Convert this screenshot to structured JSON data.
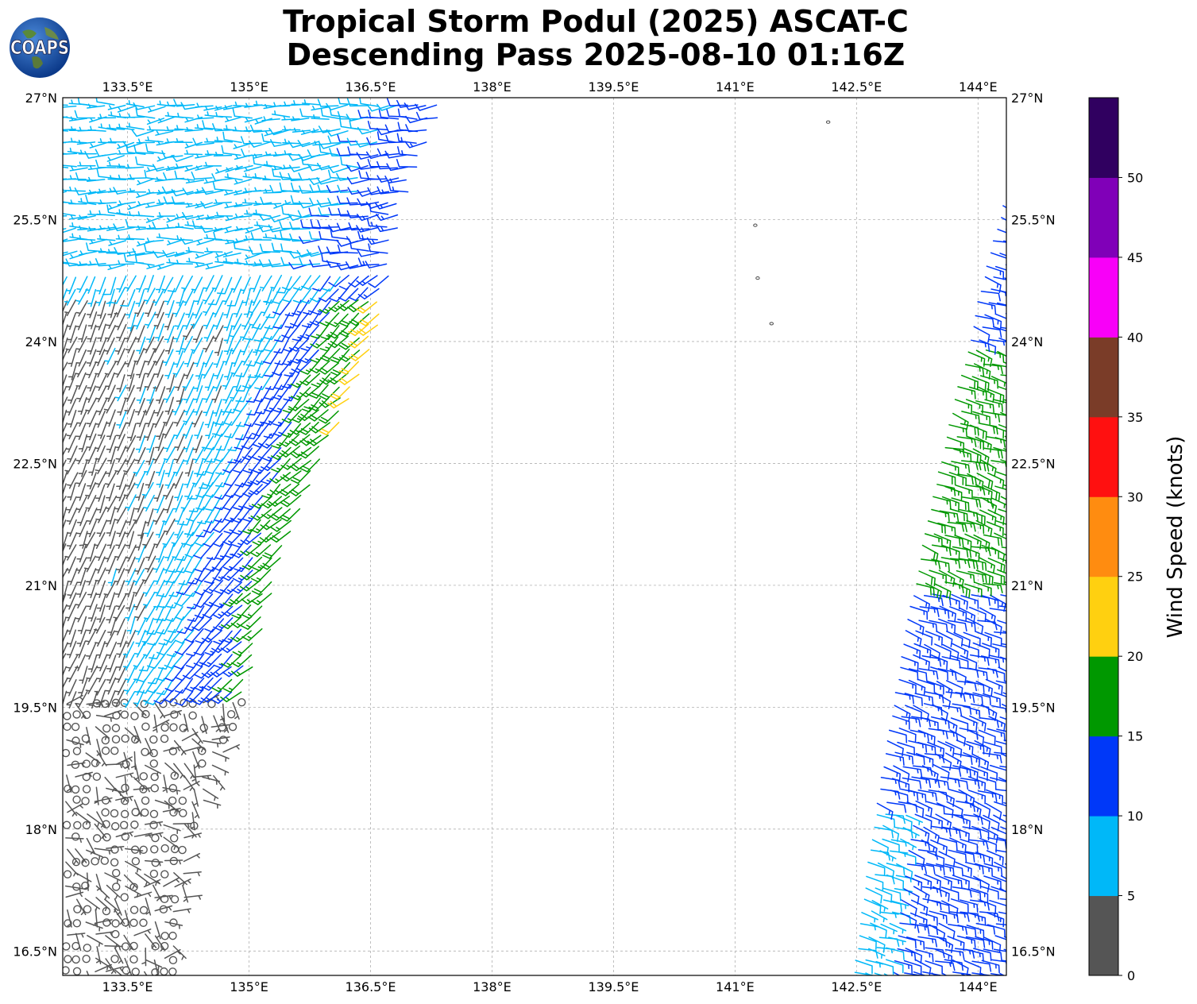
{
  "title": {
    "line1": "Tropical Storm Podul (2025) ASCAT-C",
    "line2": "Descending Pass 2025-08-10 01:16Z"
  },
  "logo": {
    "text": "COAPS",
    "icon": "globe-logo-icon"
  },
  "map": {
    "projection": "plate-carree",
    "lon_range": [
      132.7,
      144.35
    ],
    "lat_range": [
      16.2,
      27.0
    ],
    "gridlines": true,
    "lon_ticks": [
      {
        "value": 133.5,
        "label": "133.5°E"
      },
      {
        "value": 135.0,
        "label": "135°E"
      },
      {
        "value": 136.5,
        "label": "136.5°E"
      },
      {
        "value": 138.0,
        "label": "138°E"
      },
      {
        "value": 139.5,
        "label": "139.5°E"
      },
      {
        "value": 141.0,
        "label": "141°E"
      },
      {
        "value": 142.5,
        "label": "142.5°E"
      },
      {
        "value": 144.0,
        "label": "144°E"
      }
    ],
    "lat_ticks": [
      {
        "value": 27.0,
        "label": "27°N"
      },
      {
        "value": 25.5,
        "label": "25.5°N"
      },
      {
        "value": 24.0,
        "label": "24°N"
      },
      {
        "value": 22.5,
        "label": "22.5°N"
      },
      {
        "value": 21.0,
        "label": "21°N"
      },
      {
        "value": 19.5,
        "label": "19.5°N"
      },
      {
        "value": 18.0,
        "label": "18°N"
      },
      {
        "value": 16.5,
        "label": "16.5°N"
      }
    ],
    "islands": [
      {
        "lon": 141.25,
        "lat": 25.43
      },
      {
        "lon": 141.28,
        "lat": 24.78
      },
      {
        "lon": 141.45,
        "lat": 24.22
      },
      {
        "lon": 142.15,
        "lat": 26.7
      }
    ]
  },
  "colorbar": {
    "label": "Wind Speed (knots)",
    "ticks": [
      "0",
      "5",
      "10",
      "15",
      "20",
      "25",
      "30",
      "35",
      "40",
      "45",
      "50"
    ],
    "bins": [
      {
        "min": 0,
        "max": 5,
        "color": "#555555"
      },
      {
        "min": 5,
        "max": 10,
        "color": "#00b8f8"
      },
      {
        "min": 10,
        "max": 15,
        "color": "#0038f8"
      },
      {
        "min": 15,
        "max": 20,
        "color": "#009800"
      },
      {
        "min": 20,
        "max": 25,
        "color": "#ffd010"
      },
      {
        "min": 25,
        "max": 30,
        "color": "#ff8c10"
      },
      {
        "min": 30,
        "max": 35,
        "color": "#ff1010"
      },
      {
        "min": 35,
        "max": 40,
        "color": "#7a3c28"
      },
      {
        "min": 40,
        "max": 45,
        "color": "#f800f8"
      },
      {
        "min": 45,
        "max": 50,
        "color": "#8000b8"
      },
      {
        "min": 50,
        "max": 55,
        "color": "#300060"
      }
    ]
  },
  "swaths": {
    "west": {
      "lon_min": 132.7,
      "edge": [
        [
          27.0,
          137.45
        ],
        [
          25.6,
          136.9
        ],
        [
          24.0,
          136.55
        ],
        [
          22.5,
          135.9
        ],
        [
          21.0,
          135.3
        ],
        [
          19.5,
          134.9
        ],
        [
          18.0,
          134.3
        ],
        [
          16.2,
          134.1
        ]
      ],
      "regions": [
        {
          "lat_min": 16.2,
          "lat_max": 19.6,
          "kind": "calm"
        },
        {
          "lat_min": 19.6,
          "lat_max": 27.0,
          "kind": "wind"
        }
      ]
    },
    "east": {
      "lon_max": 144.35,
      "edge": [
        [
          16.2,
          142.45
        ],
        [
          17.5,
          142.6
        ],
        [
          19.0,
          142.85
        ],
        [
          20.5,
          143.1
        ],
        [
          22.0,
          143.4
        ],
        [
          23.5,
          143.75
        ],
        [
          25.0,
          144.1
        ],
        [
          25.9,
          144.35
        ]
      ]
    },
    "spacing_deg": 0.12
  }
}
